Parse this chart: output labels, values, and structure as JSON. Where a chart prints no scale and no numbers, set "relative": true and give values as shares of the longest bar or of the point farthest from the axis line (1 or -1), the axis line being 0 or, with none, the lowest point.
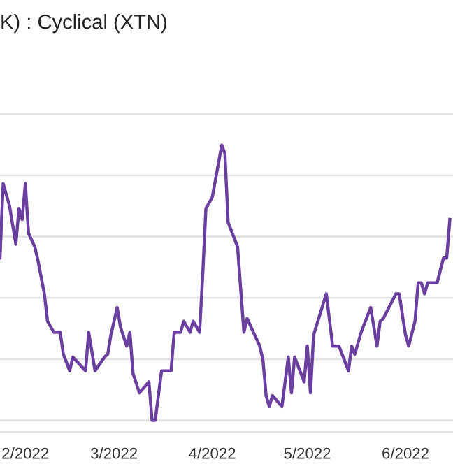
{
  "chart_data": {
    "type": "line",
    "title": "K) : Cyclical (XTN)",
    "relative": true,
    "grid": "y",
    "tick_labels": "x",
    "xticks": [
      {
        "value": "2022-02-01",
        "label": "2/2022"
      },
      {
        "value": "2022-03-01",
        "label": "3/2022"
      },
      {
        "value": "2022-04-01",
        "label": "4/2022"
      },
      {
        "value": "2022-05-01",
        "label": "5/2022"
      },
      {
        "value": "2022-06-01",
        "label": "6/2022"
      }
    ],
    "xlim": [
      "2022-01-24",
      "2022-06-16"
    ],
    "series": [
      {
        "color": "#6b3fa0",
        "x": [
          "2022-01-24",
          "2022-01-25",
          "2022-01-27",
          "2022-01-29",
          "2022-01-30",
          "2022-01-31",
          "2022-02-01",
          "2022-02-02",
          "2022-02-04",
          "2022-02-05",
          "2022-02-07",
          "2022-02-08",
          "2022-02-10",
          "2022-02-12",
          "2022-02-13",
          "2022-02-15",
          "2022-02-16",
          "2022-02-20",
          "2022-02-21",
          "2022-02-23",
          "2022-02-26",
          "2022-02-27",
          "2022-02-28",
          "2022-03-02",
          "2022-03-03",
          "2022-03-05",
          "2022-03-06",
          "2022-03-07",
          "2022-03-09",
          "2022-03-12",
          "2022-03-13",
          "2022-03-14",
          "2022-03-16",
          "2022-03-19",
          "2022-03-20",
          "2022-03-22",
          "2022-03-23",
          "2022-03-25",
          "2022-03-26",
          "2022-03-28",
          "2022-03-29",
          "2022-03-30",
          "2022-04-01",
          "2022-04-04",
          "2022-04-05",
          "2022-04-06",
          "2022-04-09",
          "2022-04-11",
          "2022-04-12",
          "2022-04-16",
          "2022-04-17",
          "2022-04-18",
          "2022-04-19",
          "2022-04-20",
          "2022-04-23",
          "2022-04-25",
          "2022-04-26",
          "2022-04-27",
          "2022-04-30",
          "2022-05-01",
          "2022-05-02",
          "2022-05-03",
          "2022-05-07",
          "2022-05-09",
          "2022-05-11",
          "2022-05-14",
          "2022-05-15",
          "2022-05-16",
          "2022-05-18",
          "2022-05-21",
          "2022-05-23",
          "2022-05-24",
          "2022-05-25",
          "2022-05-29",
          "2022-05-30",
          "2022-06-01",
          "2022-06-02",
          "2022-06-04",
          "2022-06-05",
          "2022-06-06",
          "2022-06-07",
          "2022-06-08",
          "2022-06-11",
          "2022-06-13",
          "2022-06-14",
          "2022-06-15"
        ],
        "values": [
          0.59,
          0.86,
          0.78,
          0.64,
          0.77,
          0.73,
          0.86,
          0.68,
          0.63,
          0.58,
          0.46,
          0.36,
          0.32,
          0.32,
          0.24,
          0.18,
          0.23,
          0.18,
          0.32,
          0.18,
          0.23,
          0.24,
          0.31,
          0.41,
          0.34,
          0.27,
          0.32,
          0.17,
          0.1,
          0.14,
          0.0,
          0.0,
          0.18,
          0.18,
          0.32,
          0.32,
          0.36,
          0.32,
          0.36,
          0.32,
          0.53,
          0.77,
          0.81,
          1.0,
          0.97,
          0.72,
          0.63,
          0.32,
          0.37,
          0.27,
          0.22,
          0.09,
          0.05,
          0.09,
          0.05,
          0.23,
          0.1,
          0.23,
          0.14,
          0.27,
          0.1,
          0.31,
          0.46,
          0.27,
          0.27,
          0.18,
          0.27,
          0.24,
          0.32,
          0.41,
          0.27,
          0.36,
          0.37,
          0.46,
          0.46,
          0.31,
          0.27,
          0.36,
          0.5,
          0.5,
          0.46,
          0.5,
          0.5,
          0.59,
          0.59,
          0.73
        ]
      }
    ]
  }
}
